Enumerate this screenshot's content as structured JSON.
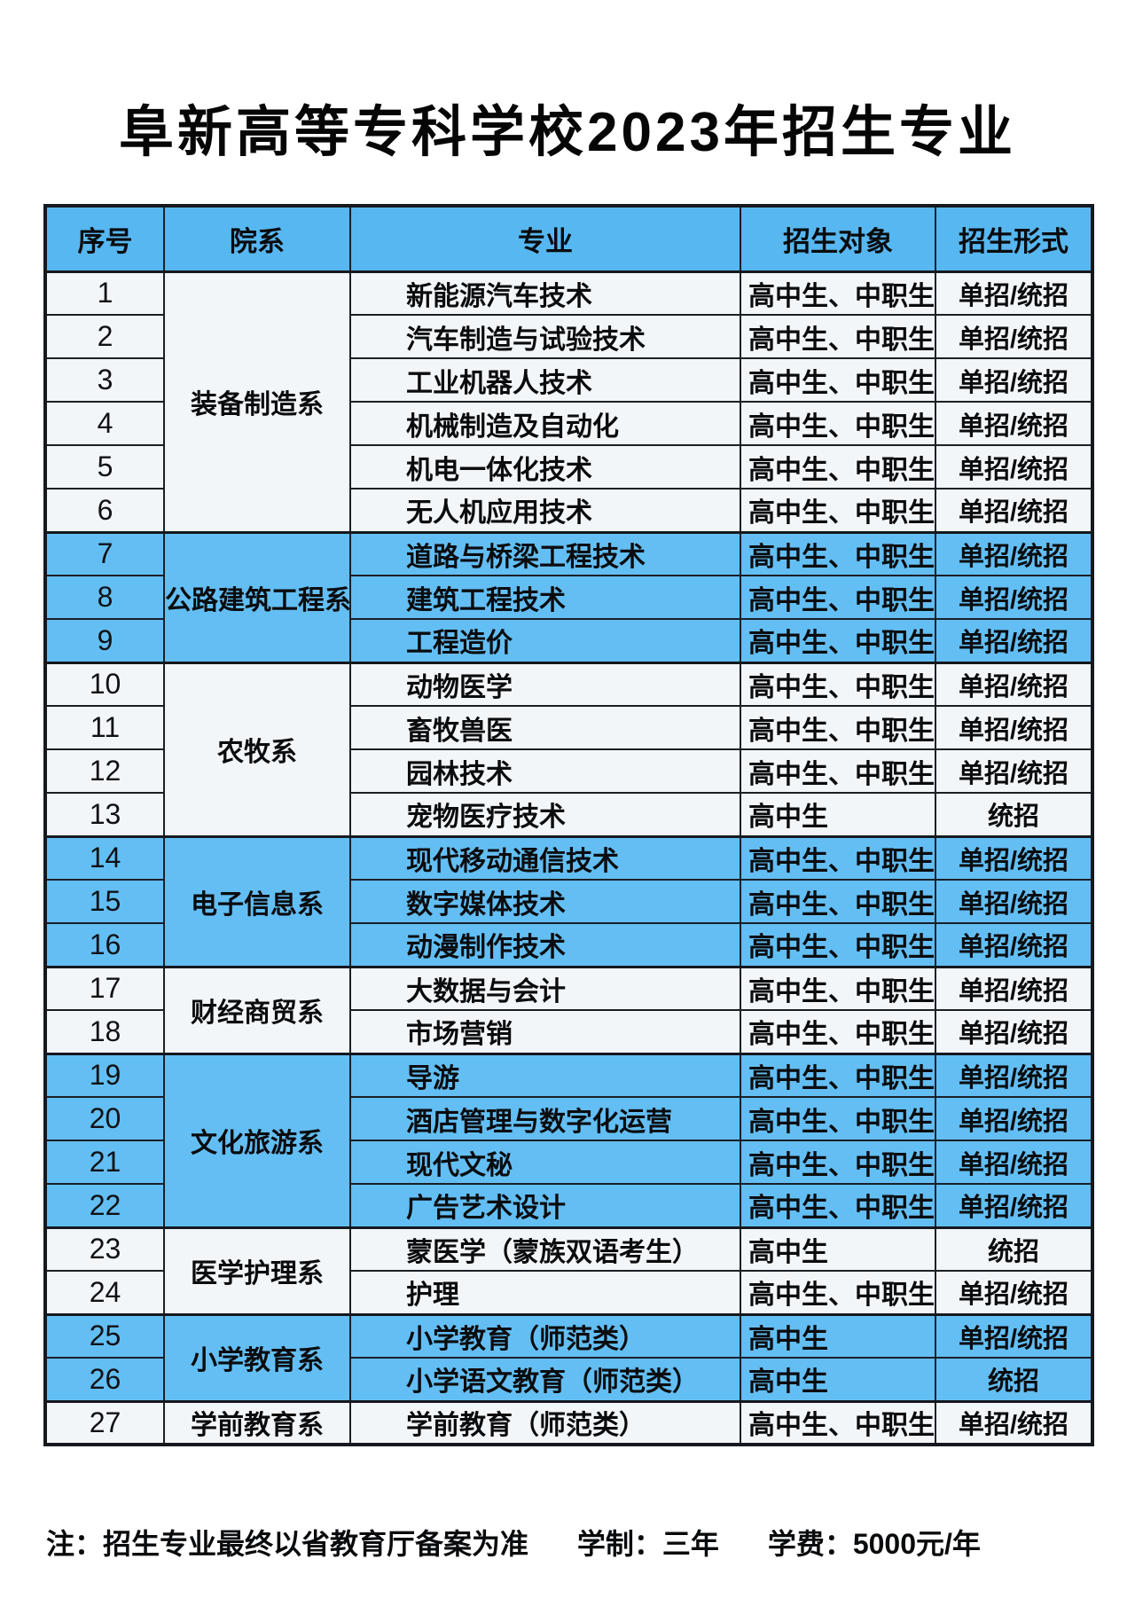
{
  "title": "阜新高等专科学校2023年招生专业",
  "colors": {
    "header_blue": "#57b7f0",
    "row_blue": "#63bef3",
    "row_white": "#f3f6f8",
    "border_dark": "#15181d"
  },
  "table": {
    "headers": [
      "序号",
      "院系",
      "专业",
      "招生对象",
      "招生形式"
    ],
    "groups": [
      {
        "dept": "装备制造系",
        "shade": "white",
        "rows": [
          {
            "no": "1",
            "major": "新能源汽车技术",
            "target": "高中生、中职生",
            "form": "单招/统招"
          },
          {
            "no": "2",
            "major": "汽车制造与试验技术",
            "target": "高中生、中职生",
            "form": "单招/统招"
          },
          {
            "no": "3",
            "major": "工业机器人技术",
            "target": "高中生、中职生",
            "form": "单招/统招"
          },
          {
            "no": "4",
            "major": "机械制造及自动化",
            "target": "高中生、中职生",
            "form": "单招/统招"
          },
          {
            "no": "5",
            "major": "机电一体化技术",
            "target": "高中生、中职生",
            "form": "单招/统招"
          },
          {
            "no": "6",
            "major": "无人机应用技术",
            "target": "高中生、中职生",
            "form": "单招/统招"
          }
        ]
      },
      {
        "dept": "公路建筑工程系",
        "shade": "blue",
        "rows": [
          {
            "no": "7",
            "major": "道路与桥梁工程技术",
            "target": "高中生、中职生",
            "form": "单招/统招"
          },
          {
            "no": "8",
            "major": "建筑工程技术",
            "target": "高中生、中职生",
            "form": "单招/统招"
          },
          {
            "no": "9",
            "major": "工程造价",
            "target": "高中生、中职生",
            "form": "单招/统招"
          }
        ]
      },
      {
        "dept": "农牧系",
        "shade": "white",
        "rows": [
          {
            "no": "10",
            "major": "动物医学",
            "target": "高中生、中职生",
            "form": "单招/统招"
          },
          {
            "no": "11",
            "major": "畜牧兽医",
            "target": "高中生、中职生",
            "form": "单招/统招"
          },
          {
            "no": "12",
            "major": "园林技术",
            "target": "高中生、中职生",
            "form": "单招/统招"
          },
          {
            "no": "13",
            "major": "宠物医疗技术",
            "target": "高中生",
            "form": "统招"
          }
        ]
      },
      {
        "dept": "电子信息系",
        "shade": "blue",
        "rows": [
          {
            "no": "14",
            "major": "现代移动通信技术",
            "target": "高中生、中职生",
            "form": "单招/统招"
          },
          {
            "no": "15",
            "major": "数字媒体技术",
            "target": "高中生、中职生",
            "form": "单招/统招"
          },
          {
            "no": "16",
            "major": "动漫制作技术",
            "target": "高中生、中职生",
            "form": "单招/统招"
          }
        ]
      },
      {
        "dept": "财经商贸系",
        "shade": "white",
        "rows": [
          {
            "no": "17",
            "major": "大数据与会计",
            "target": "高中生、中职生",
            "form": "单招/统招"
          },
          {
            "no": "18",
            "major": "市场营销",
            "target": "高中生、中职生",
            "form": "单招/统招"
          }
        ]
      },
      {
        "dept": "文化旅游系",
        "shade": "blue",
        "rows": [
          {
            "no": "19",
            "major": "导游",
            "target": "高中生、中职生",
            "form": "单招/统招"
          },
          {
            "no": "20",
            "major": "酒店管理与数字化运营",
            "target": "高中生、中职生",
            "form": "单招/统招"
          },
          {
            "no": "21",
            "major": "现代文秘",
            "target": "高中生、中职生",
            "form": "单招/统招"
          },
          {
            "no": "22",
            "major": "广告艺术设计",
            "target": "高中生、中职生",
            "form": "单招/统招"
          }
        ]
      },
      {
        "dept": "医学护理系",
        "shade": "white",
        "rows": [
          {
            "no": "23",
            "major": "蒙医学（蒙族双语考生）",
            "target": "高中生",
            "form": "统招"
          },
          {
            "no": "24",
            "major": "护理",
            "target": "高中生、中职生",
            "form": "单招/统招"
          }
        ]
      },
      {
        "dept": "小学教育系",
        "shade": "blue",
        "rows": [
          {
            "no": "25",
            "major": "小学教育（师范类）",
            "target": "高中生",
            "form": "单招/统招"
          },
          {
            "no": "26",
            "major": "小学语文教育（师范类）",
            "target": "高中生",
            "form": "统招"
          }
        ]
      },
      {
        "dept": "学前教育系",
        "shade": "white",
        "rows": [
          {
            "no": "27",
            "major": "学前教育（师范类）",
            "target": "高中生、中职生",
            "form": "单招/统招"
          }
        ]
      }
    ]
  },
  "note": {
    "prefix": "注：招生专业最终以省教育厅备案为准",
    "term": "学制：三年",
    "fee": "学费：5000元/年"
  }
}
